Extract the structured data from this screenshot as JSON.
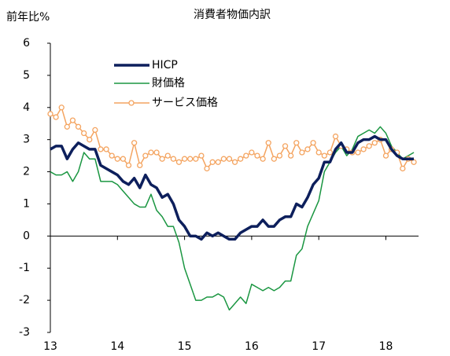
{
  "chart_data": {
    "type": "line",
    "title": "消費者物価内訳",
    "y_label": "前年比%",
    "categories": [
      "13",
      null,
      null,
      null,
      null,
      null,
      null,
      null,
      null,
      null,
      null,
      null,
      "14",
      null,
      null,
      null,
      null,
      null,
      null,
      null,
      null,
      null,
      null,
      null,
      "15",
      null,
      null,
      null,
      null,
      null,
      null,
      null,
      null,
      null,
      null,
      null,
      "16",
      null,
      null,
      null,
      null,
      null,
      null,
      null,
      null,
      null,
      null,
      null,
      "17",
      null,
      null,
      null,
      null,
      null,
      null,
      null,
      null,
      null,
      null,
      null,
      "18",
      null,
      null,
      null,
      null,
      null
    ],
    "series": [
      {
        "name": "HICP",
        "color": "#0d1f5c",
        "values": [
          2.7,
          2.8,
          2.8,
          2.4,
          2.7,
          2.9,
          2.8,
          2.7,
          2.7,
          2.2,
          2.1,
          2.0,
          1.9,
          1.7,
          1.6,
          1.8,
          1.5,
          1.9,
          1.6,
          1.5,
          1.2,
          1.3,
          1.0,
          0.5,
          0.3,
          0.0,
          0.0,
          -0.1,
          0.1,
          0.0,
          0.1,
          0.0,
          -0.1,
          -0.1,
          0.1,
          0.2,
          0.3,
          0.3,
          0.5,
          0.3,
          0.3,
          0.5,
          0.6,
          0.6,
          1.0,
          0.9,
          1.2,
          1.6,
          1.8,
          2.3,
          2.3,
          2.7,
          2.9,
          2.6,
          2.6,
          2.9,
          3.0,
          3.0,
          3.1,
          3.0,
          3.0,
          2.7,
          2.5,
          2.4,
          2.4,
          2.4
        ]
      },
      {
        "name": "財価格",
        "color": "#1a9641",
        "values": [
          2.0,
          1.9,
          1.9,
          2.0,
          1.7,
          2.0,
          2.6,
          2.4,
          2.4,
          1.7,
          1.7,
          1.7,
          1.6,
          1.4,
          1.2,
          1.0,
          0.9,
          0.9,
          1.3,
          0.8,
          0.6,
          0.3,
          0.3,
          -0.2,
          -1.0,
          -1.5,
          -2.0,
          -2.0,
          -1.9,
          -1.9,
          -1.8,
          -1.9,
          -2.3,
          -2.1,
          -1.9,
          -2.1,
          -1.5,
          -1.6,
          -1.7,
          -1.6,
          -1.7,
          -1.6,
          -1.4,
          -1.4,
          -0.6,
          -0.4,
          0.3,
          0.7,
          1.1,
          2.0,
          2.3,
          2.6,
          2.8,
          2.5,
          2.7,
          3.1,
          3.2,
          3.3,
          3.2,
          3.4,
          3.2,
          2.8,
          2.6,
          2.4,
          2.5,
          2.6
        ]
      },
      {
        "name": "サービス価格",
        "color": "#f4a460",
        "values": [
          3.8,
          3.7,
          4.0,
          3.4,
          3.6,
          3.4,
          3.2,
          3.0,
          3.3,
          2.7,
          2.7,
          2.5,
          2.4,
          2.4,
          2.2,
          2.9,
          2.2,
          2.5,
          2.6,
          2.6,
          2.4,
          2.5,
          2.4,
          2.3,
          2.4,
          2.4,
          2.4,
          2.5,
          2.1,
          2.3,
          2.3,
          2.4,
          2.4,
          2.3,
          2.4,
          2.5,
          2.6,
          2.5,
          2.4,
          2.9,
          2.4,
          2.5,
          2.8,
          2.5,
          2.9,
          2.6,
          2.7,
          2.9,
          2.6,
          2.5,
          2.6,
          3.1,
          2.8,
          2.7,
          2.6,
          2.6,
          2.7,
          2.8,
          2.9,
          3.0,
          2.5,
          2.7,
          2.6,
          2.1,
          2.4,
          2.3
        ]
      }
    ],
    "ylim": [
      -3,
      6
    ],
    "yticks": [
      -3,
      -2,
      -1,
      0,
      1,
      2,
      3,
      4,
      5,
      6
    ]
  }
}
